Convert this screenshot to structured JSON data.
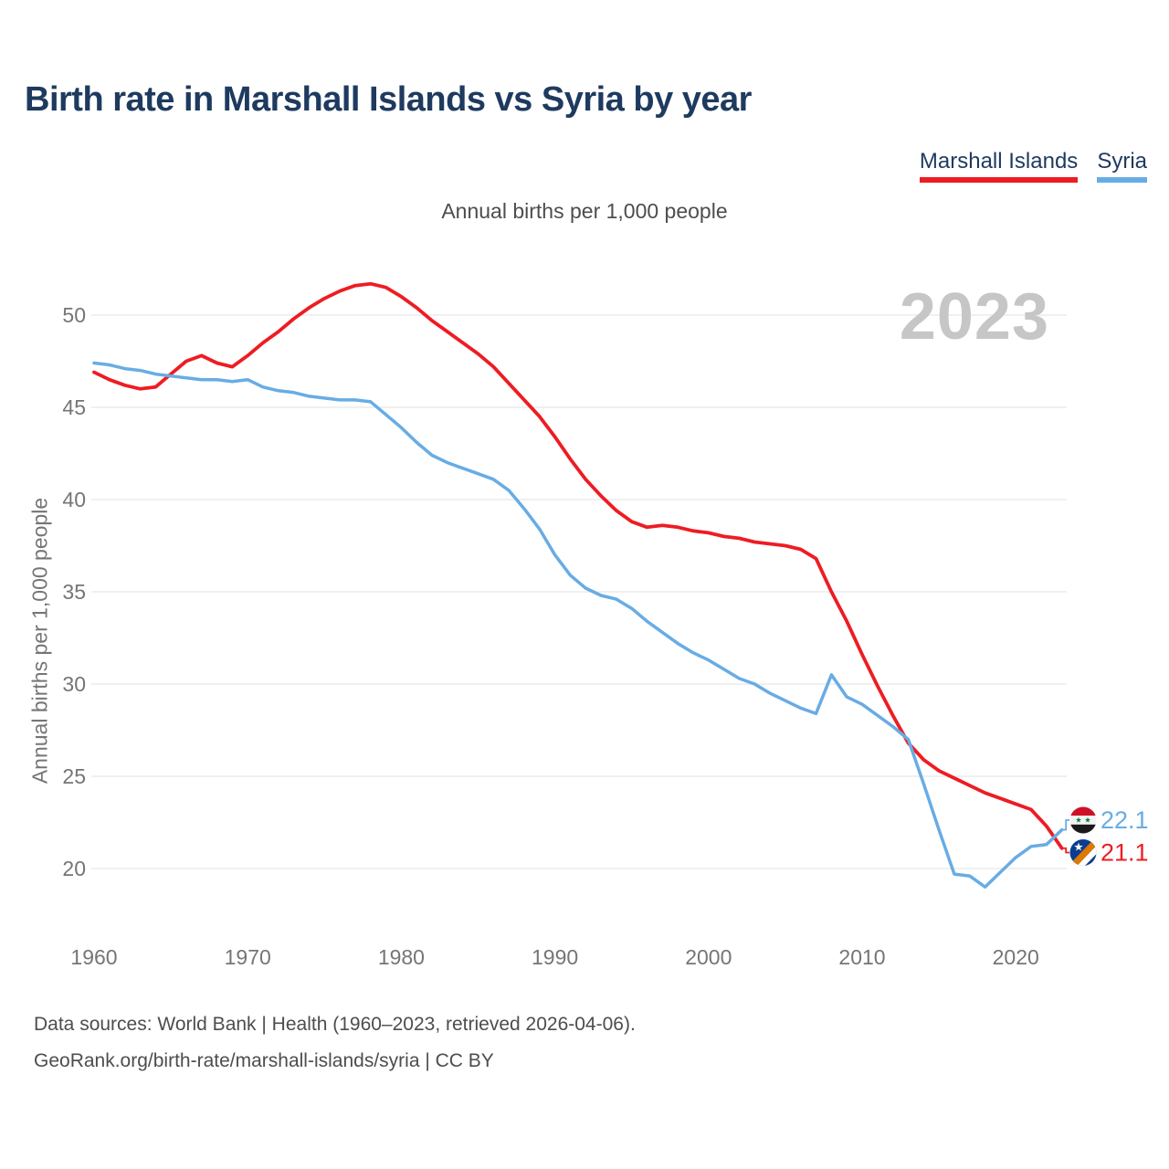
{
  "page": {
    "title": "Birth rate in Marshall Islands vs Syria by year",
    "subtitle": "Annual births per 1,000 people",
    "watermark": "2023",
    "footer_line1": "Data sources: World Bank | Health (1960–2023, retrieved 2026-04-06).",
    "footer_line2": "GeoRank.org/birth-rate/marshall-islands/syria | CC BY"
  },
  "legend": {
    "items": [
      {
        "label": "Marshall Islands",
        "color": "#ee1c23"
      },
      {
        "label": "Syria",
        "color": "#68ace4"
      }
    ]
  },
  "colors": {
    "marshall_islands": "#ee1c23",
    "syria": "#68ace4",
    "grid": "#ebebeb",
    "axis_text": "#757575",
    "watermark": "#c6c6c6",
    "title_text": "#1e3a5f",
    "muted_text": "#4d4d4d"
  },
  "chart_data": {
    "type": "line",
    "title": "Birth rate in Marshall Islands vs Syria by year",
    "ylabel": "Annual births per 1,000 people",
    "xlabel": "",
    "grid": "horizontal",
    "legend_position": "top-right",
    "watermark": "2023",
    "x_ticks": [
      1960,
      1970,
      1980,
      1990,
      2000,
      2010,
      2020
    ],
    "y_ticks": [
      20,
      25,
      30,
      35,
      40,
      45,
      50
    ],
    "xlim": [
      1960,
      2023
    ],
    "ylim": [
      17.5,
      53.5
    ],
    "years": [
      1960,
      1961,
      1962,
      1963,
      1964,
      1965,
      1966,
      1967,
      1968,
      1969,
      1970,
      1971,
      1972,
      1973,
      1974,
      1975,
      1976,
      1977,
      1978,
      1979,
      1980,
      1981,
      1982,
      1983,
      1984,
      1985,
      1986,
      1987,
      1988,
      1989,
      1990,
      1991,
      1992,
      1993,
      1994,
      1995,
      1996,
      1997,
      1998,
      1999,
      2000,
      2001,
      2002,
      2003,
      2004,
      2005,
      2006,
      2007,
      2008,
      2009,
      2010,
      2011,
      2012,
      2013,
      2014,
      2015,
      2016,
      2017,
      2018,
      2019,
      2020,
      2021,
      2022,
      2023
    ],
    "series": [
      {
        "name": "Marshall Islands",
        "color": "#ee1c23",
        "end_label": "21.1",
        "flag_icon": "marshall-islands-flag-icon",
        "values": [
          46.9,
          46.5,
          46.2,
          46.0,
          46.1,
          46.8,
          47.5,
          47.8,
          47.4,
          47.2,
          47.8,
          48.5,
          49.1,
          49.8,
          50.4,
          50.9,
          51.3,
          51.6,
          51.7,
          51.5,
          51.0,
          50.4,
          49.7,
          49.1,
          48.5,
          47.9,
          47.2,
          46.3,
          45.4,
          44.5,
          43.4,
          42.2,
          41.1,
          40.2,
          39.4,
          38.8,
          38.5,
          38.6,
          38.5,
          38.3,
          38.2,
          38.0,
          37.9,
          37.7,
          37.6,
          37.5,
          37.3,
          36.8,
          35.0,
          33.4,
          31.6,
          29.9,
          28.3,
          26.8,
          25.9,
          25.3,
          24.9,
          24.5,
          24.1,
          23.8,
          23.5,
          23.2,
          22.3,
          21.1
        ]
      },
      {
        "name": "Syria",
        "color": "#68ace4",
        "end_label": "22.1",
        "flag_icon": "syria-flag-icon",
        "values": [
          47.4,
          47.3,
          47.1,
          47.0,
          46.8,
          46.7,
          46.6,
          46.5,
          46.5,
          46.4,
          46.5,
          46.1,
          45.9,
          45.8,
          45.6,
          45.5,
          45.4,
          45.4,
          45.3,
          44.6,
          43.9,
          43.1,
          42.4,
          42.0,
          41.7,
          41.4,
          41.1,
          40.5,
          39.5,
          38.4,
          37.0,
          35.9,
          35.2,
          34.8,
          34.6,
          34.1,
          33.4,
          32.8,
          32.2,
          31.7,
          31.3,
          30.8,
          30.3,
          30.0,
          29.5,
          29.1,
          28.7,
          28.4,
          30.5,
          29.3,
          28.9,
          28.3,
          27.7,
          27.0,
          24.6,
          22.1,
          19.7,
          19.6,
          19.0,
          19.8,
          20.6,
          21.2,
          21.3,
          22.1
        ]
      }
    ]
  }
}
